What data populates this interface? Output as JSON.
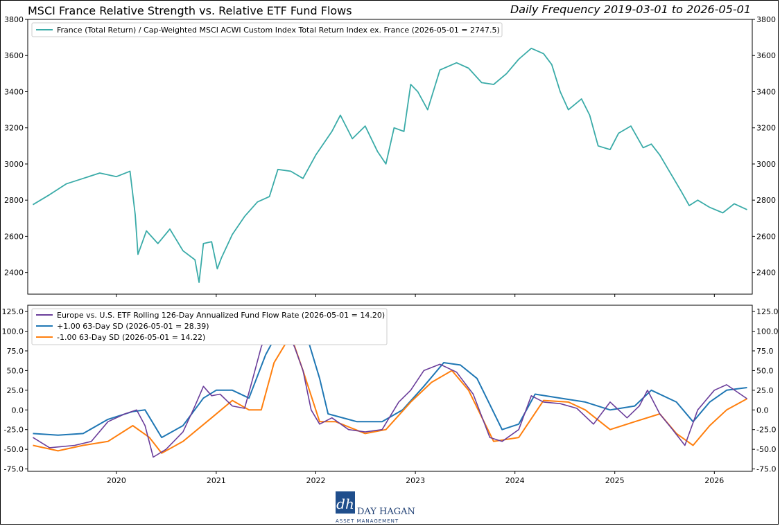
{
  "header": {
    "title": "MSCI France Relative Strength vs. Relative ETF Fund Flows",
    "frequency": "Daily Frequency 2019-03-01 to 2026-05-01"
  },
  "logo": {
    "name": "DAY HAGAN",
    "sub": "ASSET MANAGEMENT",
    "mark": "dh"
  },
  "colors": {
    "rs": "#3aaba8",
    "flow": "#6a3d9a",
    "upper": "#1f77b4",
    "lower": "#ff7f0e"
  },
  "chart_data": [
    {
      "type": "line",
      "y_ticks": [
        2400,
        2600,
        2800,
        3000,
        3200,
        3400,
        3600,
        3800
      ],
      "ylim": [
        2280,
        3800
      ],
      "series": [
        {
          "name": "France (Total Return) / Cap-Weighted MSCI ACWI Custom Index Total Return Index ex. France (2026-05-01 = 2747.5)",
          "points": [
            [
              "2019-03-01",
              2775
            ],
            [
              "2019-05-01",
              2830
            ],
            [
              "2019-07-01",
              2890
            ],
            [
              "2019-09-01",
              2920
            ],
            [
              "2019-11-01",
              2950
            ],
            [
              "2020-01-01",
              2930
            ],
            [
              "2020-02-20",
              2960
            ],
            [
              "2020-03-10",
              2720
            ],
            [
              "2020-03-20",
              2500
            ],
            [
              "2020-04-20",
              2630
            ],
            [
              "2020-06-01",
              2560
            ],
            [
              "2020-07-15",
              2640
            ],
            [
              "2020-09-01",
              2520
            ],
            [
              "2020-10-15",
              2470
            ],
            [
              "2020-10-30",
              2345
            ],
            [
              "2020-11-15",
              2560
            ],
            [
              "2020-12-15",
              2570
            ],
            [
              "2021-01-05",
              2420
            ],
            [
              "2021-01-20",
              2480
            ],
            [
              "2021-03-01",
              2610
            ],
            [
              "2021-04-15",
              2710
            ],
            [
              "2021-06-01",
              2790
            ],
            [
              "2021-07-15",
              2820
            ],
            [
              "2021-08-15",
              2970
            ],
            [
              "2021-10-01",
              2960
            ],
            [
              "2021-11-15",
              2920
            ],
            [
              "2022-01-01",
              3050
            ],
            [
              "2022-03-01",
              3180
            ],
            [
              "2022-04-01",
              3270
            ],
            [
              "2022-05-15",
              3140
            ],
            [
              "2022-07-01",
              3210
            ],
            [
              "2022-08-15",
              3070
            ],
            [
              "2022-09-15",
              3000
            ],
            [
              "2022-10-15",
              3200
            ],
            [
              "2022-11-20",
              3180
            ],
            [
              "2022-12-15",
              3440
            ],
            [
              "2023-01-10",
              3400
            ],
            [
              "2023-02-15",
              3300
            ],
            [
              "2023-04-01",
              3520
            ],
            [
              "2023-06-01",
              3560
            ],
            [
              "2023-07-15",
              3530
            ],
            [
              "2023-09-01",
              3450
            ],
            [
              "2023-10-15",
              3440
            ],
            [
              "2023-12-01",
              3500
            ],
            [
              "2024-01-15",
              3580
            ],
            [
              "2024-03-01",
              3640
            ],
            [
              "2024-04-15",
              3610
            ],
            [
              "2024-05-15",
              3550
            ],
            [
              "2024-06-15",
              3400
            ],
            [
              "2024-07-15",
              3300
            ],
            [
              "2024-09-01",
              3360
            ],
            [
              "2024-10-01",
              3270
            ],
            [
              "2024-11-01",
              3100
            ],
            [
              "2024-12-15",
              3080
            ],
            [
              "2025-01-15",
              3170
            ],
            [
              "2025-03-01",
              3210
            ],
            [
              "2025-04-15",
              3090
            ],
            [
              "2025-05-15",
              3110
            ],
            [
              "2025-06-15",
              3050
            ],
            [
              "2025-07-20",
              2960
            ],
            [
              "2025-09-01",
              2850
            ],
            [
              "2025-10-01",
              2770
            ],
            [
              "2025-11-01",
              2800
            ],
            [
              "2025-12-15",
              2760
            ],
            [
              "2026-02-01",
              2730
            ],
            [
              "2026-03-15",
              2780
            ],
            [
              "2026-05-01",
              2747.5
            ]
          ]
        }
      ]
    },
    {
      "type": "line",
      "x_ticks": [
        "2020",
        "2021",
        "2022",
        "2023",
        "2024",
        "2025",
        "2026"
      ],
      "y_ticks": [
        -75.0,
        -50.0,
        -25.0,
        0.0,
        25.0,
        50.0,
        75.0,
        100.0,
        125.0
      ],
      "ylim": [
        -78,
        133
      ],
      "series": [
        {
          "name": "Europe vs. U.S. ETF Rolling 126-Day Annualized Fund Flow Rate (2026-05-01 = 14.20)",
          "points": [
            [
              "2019-03-01",
              -35
            ],
            [
              "2019-05-01",
              -48
            ],
            [
              "2019-08-01",
              -45
            ],
            [
              "2019-10-01",
              -40
            ],
            [
              "2019-12-01",
              -15
            ],
            [
              "2020-02-01",
              -5
            ],
            [
              "2020-03-15",
              0
            ],
            [
              "2020-04-15",
              -20
            ],
            [
              "2020-05-15",
              -60
            ],
            [
              "2020-07-01",
              -50
            ],
            [
              "2020-09-01",
              -28
            ],
            [
              "2020-10-15",
              5
            ],
            [
              "2020-11-15",
              30
            ],
            [
              "2020-12-15",
              18
            ],
            [
              "2021-01-15",
              20
            ],
            [
              "2021-03-01",
              5
            ],
            [
              "2021-04-15",
              2
            ],
            [
              "2021-05-15",
              40
            ],
            [
              "2021-06-15",
              80
            ],
            [
              "2021-07-20",
              110
            ],
            [
              "2021-08-20",
              120
            ],
            [
              "2021-09-15",
              100
            ],
            [
              "2021-10-15",
              80
            ],
            [
              "2021-11-15",
              50
            ],
            [
              "2021-12-15",
              0
            ],
            [
              "2022-01-15",
              -18
            ],
            [
              "2022-03-01",
              -10
            ],
            [
              "2022-05-01",
              -25
            ],
            [
              "2022-07-01",
              -28
            ],
            [
              "2022-09-01",
              -25
            ],
            [
              "2022-11-01",
              10
            ],
            [
              "2022-12-15",
              25
            ],
            [
              "2023-02-01",
              50
            ],
            [
              "2023-04-01",
              58
            ],
            [
              "2023-06-01",
              48
            ],
            [
              "2023-08-01",
              20
            ],
            [
              "2023-10-01",
              -35
            ],
            [
              "2023-11-15",
              -40
            ],
            [
              "2024-01-15",
              -25
            ],
            [
              "2024-03-01",
              18
            ],
            [
              "2024-04-15",
              10
            ],
            [
              "2024-06-15",
              8
            ],
            [
              "2024-08-15",
              2
            ],
            [
              "2024-10-15",
              -18
            ],
            [
              "2024-12-15",
              10
            ],
            [
              "2025-02-15",
              -10
            ],
            [
              "2025-04-01",
              5
            ],
            [
              "2025-05-01",
              25
            ],
            [
              "2025-06-15",
              -5
            ],
            [
              "2025-08-01",
              -25
            ],
            [
              "2025-09-15",
              -45
            ],
            [
              "2025-11-01",
              0
            ],
            [
              "2026-01-01",
              25
            ],
            [
              "2026-02-15",
              32
            ],
            [
              "2026-05-01",
              14.2
            ]
          ]
        },
        {
          "name": "+1.00 63-Day SD (2026-05-01 = 28.39)",
          "points": [
            [
              "2019-03-01",
              -30
            ],
            [
              "2019-06-01",
              -32
            ],
            [
              "2019-09-01",
              -30
            ],
            [
              "2019-12-01",
              -12
            ],
            [
              "2020-03-01",
              -2
            ],
            [
              "2020-04-15",
              0
            ],
            [
              "2020-06-15",
              -35
            ],
            [
              "2020-09-01",
              -20
            ],
            [
              "2020-11-15",
              15
            ],
            [
              "2021-01-01",
              25
            ],
            [
              "2021-03-01",
              25
            ],
            [
              "2021-05-01",
              15
            ],
            [
              "2021-07-01",
              70
            ],
            [
              "2021-09-01",
              110
            ],
            [
              "2021-11-15",
              110
            ],
            [
              "2022-01-15",
              40
            ],
            [
              "2022-02-15",
              -5
            ],
            [
              "2022-06-01",
              -15
            ],
            [
              "2022-09-01",
              -15
            ],
            [
              "2022-11-15",
              0
            ],
            [
              "2023-02-01",
              30
            ],
            [
              "2023-04-15",
              60
            ],
            [
              "2023-06-15",
              57
            ],
            [
              "2023-08-15",
              40
            ],
            [
              "2023-11-15",
              -25
            ],
            [
              "2024-01-15",
              -18
            ],
            [
              "2024-03-15",
              20
            ],
            [
              "2024-06-15",
              15
            ],
            [
              "2024-09-15",
              10
            ],
            [
              "2024-12-15",
              0
            ],
            [
              "2025-03-15",
              5
            ],
            [
              "2025-05-15",
              25
            ],
            [
              "2025-08-15",
              10
            ],
            [
              "2025-10-15",
              -15
            ],
            [
              "2025-12-15",
              10
            ],
            [
              "2026-02-15",
              25
            ],
            [
              "2026-05-01",
              28.39
            ]
          ]
        },
        {
          "name": "-1.00 63-Day SD (2026-05-01 = 14.22)",
          "points": [
            [
              "2019-03-01",
              -45
            ],
            [
              "2019-06-01",
              -52
            ],
            [
              "2019-09-01",
              -45
            ],
            [
              "2019-12-01",
              -40
            ],
            [
              "2020-03-01",
              -20
            ],
            [
              "2020-05-01",
              -35
            ],
            [
              "2020-06-15",
              -55
            ],
            [
              "2020-09-01",
              -40
            ],
            [
              "2020-12-15",
              -10
            ],
            [
              "2021-03-01",
              12
            ],
            [
              "2021-05-01",
              0
            ],
            [
              "2021-06-15",
              0
            ],
            [
              "2021-08-01",
              60
            ],
            [
              "2021-10-01",
              95
            ],
            [
              "2021-11-15",
              50
            ],
            [
              "2022-01-15",
              -15
            ],
            [
              "2022-03-15",
              -15
            ],
            [
              "2022-07-01",
              -30
            ],
            [
              "2022-09-15",
              -25
            ],
            [
              "2022-12-15",
              10
            ],
            [
              "2023-03-01",
              35
            ],
            [
              "2023-05-15",
              50
            ],
            [
              "2023-07-15",
              25
            ],
            [
              "2023-10-15",
              -40
            ],
            [
              "2024-01-15",
              -35
            ],
            [
              "2024-04-15",
              12
            ],
            [
              "2024-07-15",
              10
            ],
            [
              "2024-09-15",
              0
            ],
            [
              "2024-12-15",
              -25
            ],
            [
              "2025-03-15",
              -15
            ],
            [
              "2025-06-15",
              -5
            ],
            [
              "2025-08-15",
              -30
            ],
            [
              "2025-10-15",
              -45
            ],
            [
              "2025-12-15",
              -20
            ],
            [
              "2026-02-15",
              0
            ],
            [
              "2026-05-01",
              14.22
            ]
          ]
        }
      ]
    }
  ]
}
